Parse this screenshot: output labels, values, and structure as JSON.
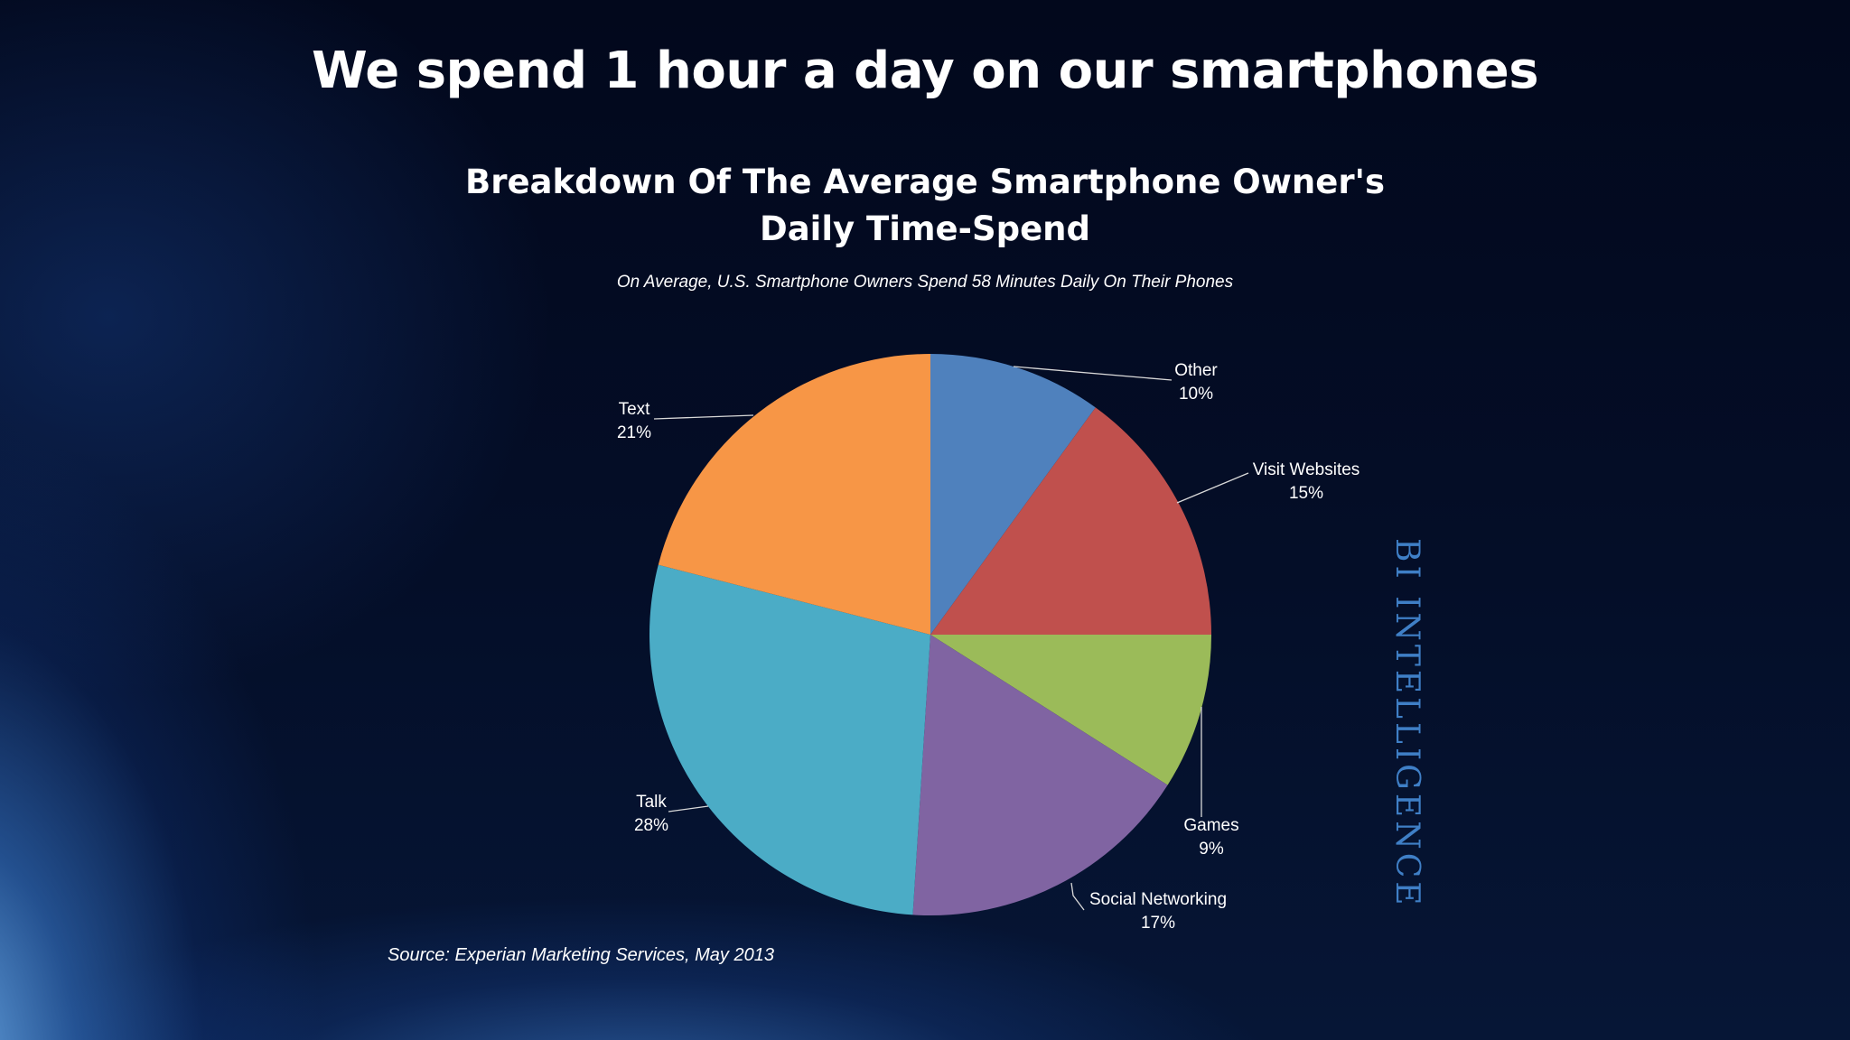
{
  "slide": {
    "title": "We spend 1 hour a day on our smartphones",
    "source": "Source: Experian Marketing Services, May 2013",
    "watermark": "BI INTELLIGENCE"
  },
  "colors": {
    "background": "#040e28",
    "watermark": "#3f7fc6"
  },
  "chart_data": {
    "type": "pie",
    "title_lines": [
      "Breakdown Of The Average Smartphone Owner's",
      "Daily Time-Spend"
    ],
    "subtitle": "On Average, U.S. Smartphone Owners Spend 58 Minutes Daily On Their Phones",
    "slices": [
      {
        "label": "Other",
        "value": 10,
        "display": "10%",
        "color": "#4f81bd"
      },
      {
        "label": "Visit Websites",
        "value": 15,
        "display": "15%",
        "color": "#c0504d"
      },
      {
        "label": "Games",
        "value": 9,
        "display": "9%",
        "color": "#9bbb59"
      },
      {
        "label": "Social Networking",
        "value": 17,
        "display": "17%",
        "color": "#8064a2"
      },
      {
        "label": "Talk",
        "value": 28,
        "display": "28%",
        "color": "#4bacc6"
      },
      {
        "label": "Text",
        "value": 21,
        "display": "21%",
        "color": "#f79646"
      }
    ],
    "start": "12 o'clock",
    "direction": "clockwise",
    "legend": "none",
    "data_labels": "outside with leader lines"
  }
}
